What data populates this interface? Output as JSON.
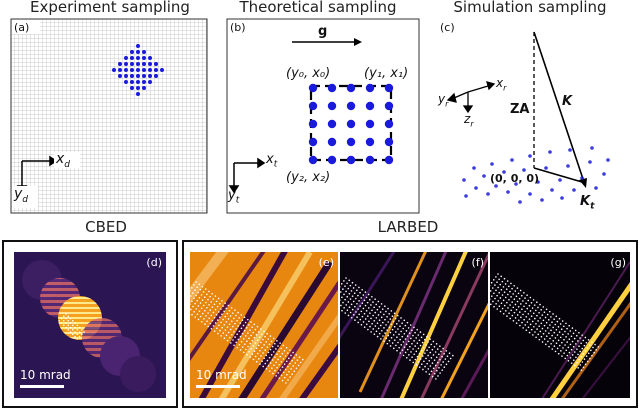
{
  "titles": {
    "experiment": "Experiment sampling",
    "theoretical": "Theoretical sampling",
    "simulation": "Simulation sampling",
    "cbed": "CBED",
    "larbed": "LARBED"
  },
  "panels": {
    "a": "(a)",
    "b": "(b)",
    "c": "(c)",
    "d": "(d)",
    "e": "(e)",
    "f": "(f)",
    "g": "(g)"
  },
  "axes_a": {
    "x": "x",
    "x_sub": "d",
    "y": "y",
    "y_sub": "d"
  },
  "axes_b": {
    "x": "x",
    "x_sub": "t",
    "y": "y",
    "y_sub": "t",
    "g": "g"
  },
  "coords_b": {
    "p0": "(y₀, x₀)",
    "p1": "(y₁, x₁)",
    "p2": "(y₂, x₂)"
  },
  "axes_c": {
    "x": "x",
    "x_sub": "r",
    "y": "y",
    "y_sub": "r",
    "z": "z",
    "z_sub": "r"
  },
  "labels_c": {
    "za": "ZA",
    "k": "K",
    "kt": "K",
    "kt_sub": "t",
    "origin": "(0, 0, 0)"
  },
  "scale": {
    "d": "10 mrad",
    "e": "10 mrad"
  },
  "colors": {
    "dots": "#1a1adb",
    "cbed_bg": "#2a1450",
    "larbed_orange": "#e8870f",
    "dark": "#0a0410"
  }
}
